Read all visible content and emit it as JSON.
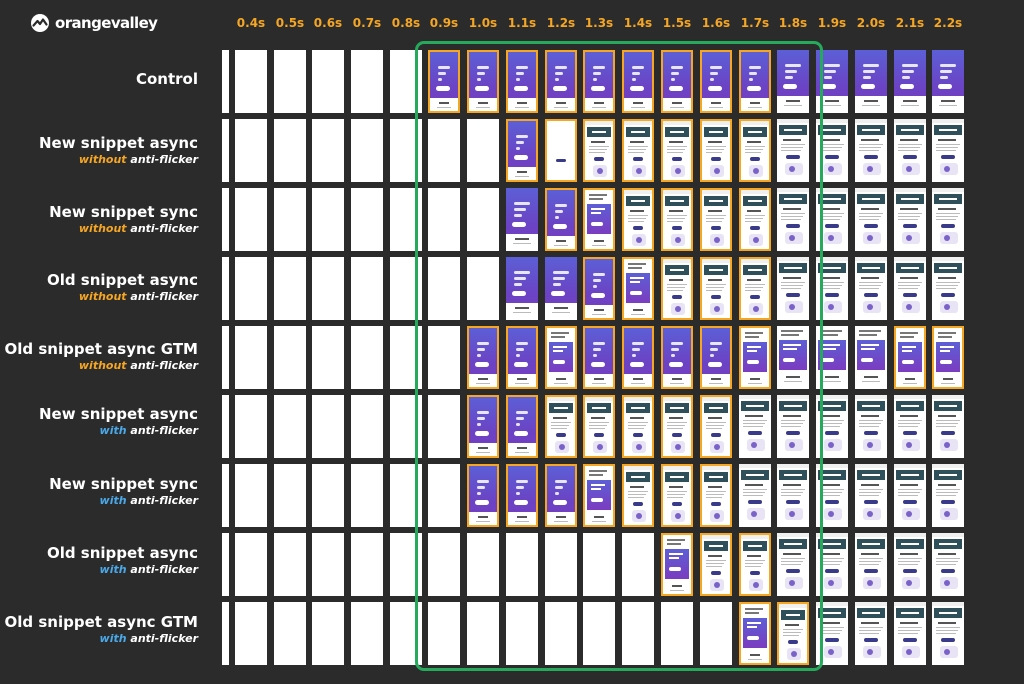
{
  "brand": {
    "name": "orangevalley",
    "logo_icon": "orangevalley-logo-icon"
  },
  "timeline": [
    "0.4s",
    "0.5s",
    "0.6s",
    "0.7s",
    "0.8s",
    "0.9s",
    "1.0s",
    "1.1s",
    "1.2s",
    "1.3s",
    "1.4s",
    "1.5s",
    "1.6s",
    "1.7s",
    "1.8s",
    "1.9s",
    "2.0s",
    "2.1s",
    "2.2s"
  ],
  "rows": [
    {
      "title": "Control",
      "mode": "",
      "suffix": "",
      "accent": "#f5a623"
    },
    {
      "title": "New snippet async",
      "mode": "without",
      "suffix": " anti-flicker",
      "accent": "#f5a623"
    },
    {
      "title": "New snippet sync",
      "mode": "without",
      "suffix": " anti-flicker",
      "accent": "#f5a623"
    },
    {
      "title": "Old snippet async",
      "mode": "without",
      "suffix": " anti-flicker",
      "accent": "#f5a623"
    },
    {
      "title": "Old snippet async GTM",
      "mode": "without",
      "suffix": " anti-flicker",
      "accent": "#f5a623"
    },
    {
      "title": "New snippet async",
      "mode": "with",
      "suffix": " anti-flicker",
      "accent": "#4aa8e8"
    },
    {
      "title": "New snippet sync",
      "mode": "with",
      "suffix": " anti-flicker",
      "accent": "#4aa8e8"
    },
    {
      "title": "Old snippet async",
      "mode": "with",
      "suffix": " anti-flicker",
      "accent": "#4aa8e8"
    },
    {
      "title": "Old snippet async GTM",
      "mode": "with",
      "suffix": " anti-flicker",
      "accent": "#4aa8e8"
    }
  ],
  "frames": [
    "BBBBBCCCCCCCCCCCCCC",
    "BBBBBBBCWXXXXXXXXXX",
    "BBBBBBBCCTXXXXXXXXX",
    "BBBBBBBCCCTXXXXXXXX",
    "BBBBBBCCTCCCCTTTTTT",
    "BBBBBBCCXXXXXXXXXXX",
    "BBBBBBCCCTXXXXXXXXX",
    "BBBBBBBBBBBTXXXXXXX",
    "BBBBBBBBBBBBBTXXXXX"
  ],
  "highlights": [
    "0000011111111100000",
    "0000000111111100000",
    "0000000011111100000",
    "0000000001111100000",
    "0000001111111100011",
    "0000001111111000000",
    "0000001111111000000",
    "0000000000011100000",
    "0000000000000110000"
  ],
  "highlight_window": {
    "from": "0.9s",
    "to": "1.8s",
    "color": "#25a95b"
  },
  "frame_legend": {
    "B": "blank",
    "C": "control-page",
    "W": "white-page",
    "T": "transition-page",
    "X": "variant-page"
  },
  "page_text": {
    "hero": "Smart Health Monitoring Wristwatch!",
    "features": "Features",
    "variant_banner": "New Features!",
    "variant_sub": "Receive Alerts"
  },
  "colors": {
    "background": "#2b2b2b",
    "time_labels": "#f5a623",
    "frame_highlight": "#f5a623",
    "window_border": "#25a95b",
    "control_gradient_top": "#5c5fd6",
    "control_gradient_bottom": "#7a3cc0",
    "variant_banner": "#2f4f5a"
  }
}
